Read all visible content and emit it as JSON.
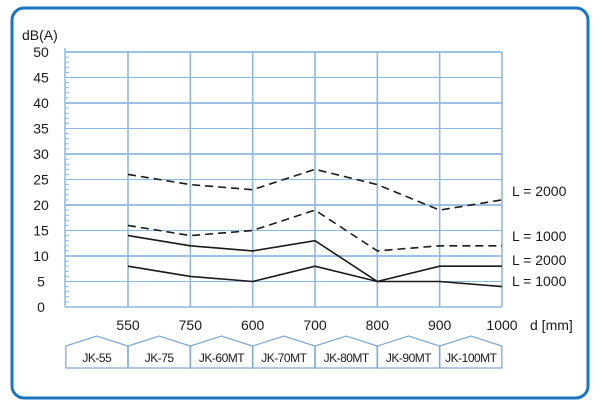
{
  "chart_data": {
    "type": "line",
    "ylabel": "dB(A)",
    "xlabel": "d [mm]",
    "ylim": [
      0,
      50
    ],
    "yticks": [
      0,
      5,
      10,
      15,
      20,
      25,
      30,
      35,
      40,
      45,
      50
    ],
    "categories": [
      "550",
      "750",
      "600",
      "700",
      "800",
      "900",
      "1000"
    ],
    "models": [
      "JK-55",
      "JK-75",
      "JK-60MT",
      "JK-70MT",
      "JK-80MT",
      "JK-90MT",
      "JK-100MT"
    ],
    "grid": true,
    "series": [
      {
        "name": "L = 2000",
        "style": "dashed",
        "values": [
          26,
          24,
          23,
          27,
          24,
          19,
          21
        ]
      },
      {
        "name": "L = 1000",
        "style": "dashed",
        "values": [
          16,
          14,
          15,
          19,
          11,
          12,
          12
        ]
      },
      {
        "name": "L = 2000",
        "style": "solid",
        "values": [
          14,
          12,
          11,
          13,
          5,
          8,
          8
        ]
      },
      {
        "name": "L = 1000",
        "style": "solid",
        "values": [
          8,
          6,
          5,
          8,
          5,
          5,
          4
        ]
      }
    ],
    "colors": {
      "frame": "#1a74c4",
      "grid": "#8fb8e0",
      "line": "#1a1a1a",
      "tab_border": "#7fa9d8"
    }
  }
}
